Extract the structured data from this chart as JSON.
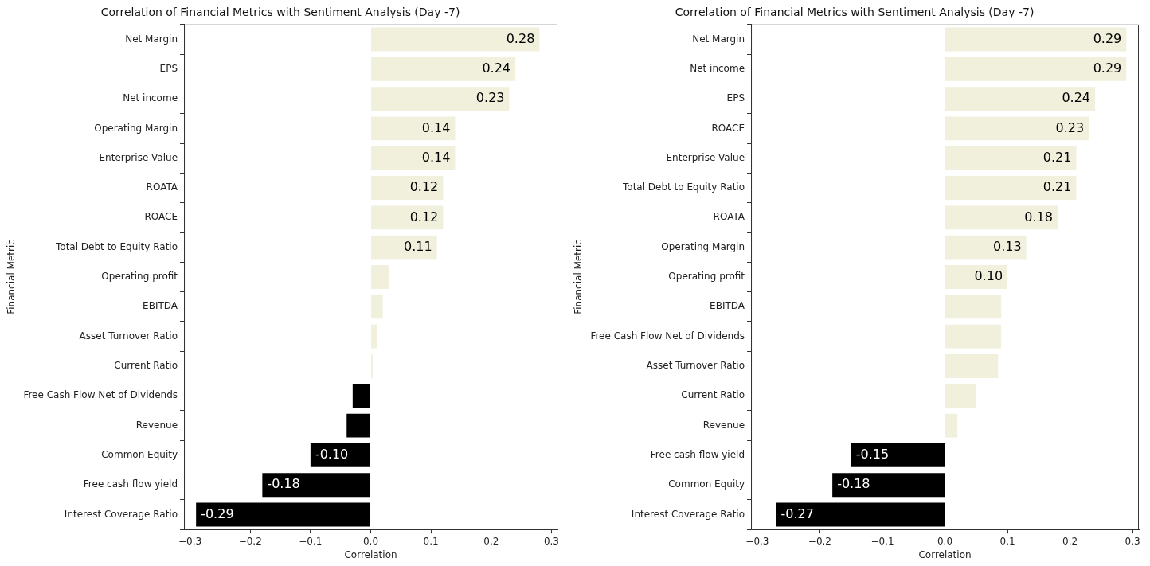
{
  "chart_data": [
    {
      "type": "bar",
      "orientation": "horizontal",
      "title": "Correlation of Financial Metrics with Sentiment Analysis (Day -7)",
      "xlabel": "Correlation",
      "ylabel": "Financial Metric",
      "categories": [
        "Net Margin",
        "EPS",
        "Net income",
        "Operating Margin",
        "Enterprise Value",
        "ROATA",
        "ROACE",
        "Total Debt to Equity Ratio",
        "Operating profit",
        "EBITDA",
        "Asset Turnover Ratio",
        "Current Ratio",
        "Free Cash Flow Net of Dividends",
        "Revenue",
        "Common Equity",
        "Free cash flow yield",
        "Interest Coverage Ratio"
      ],
      "values": [
        0.28,
        0.24,
        0.23,
        0.14,
        0.14,
        0.12,
        0.12,
        0.11,
        0.03,
        0.02,
        0.01,
        0.003,
        -0.03,
        -0.04,
        -0.1,
        -0.18,
        -0.29
      ],
      "colors": [
        "#f1f0dd",
        "#f1f0dd",
        "#f1f0dd",
        "#f1f0dd",
        "#f1f0dd",
        "#f1f0dd",
        "#f1f0dd",
        "#f1f0dd",
        "#f1f0dd",
        "#f1f0dd",
        "#f1f0dd",
        "#f1f0dd",
        "#000000",
        "#000000",
        "#000000",
        "#000000",
        "#000000"
      ],
      "value_labels": [
        "0.28",
        "0.24",
        "0.23",
        "0.14",
        "0.14",
        "0.12",
        "0.12",
        "0.11",
        null,
        null,
        null,
        null,
        null,
        null,
        "-0.10",
        "-0.18",
        "-0.29"
      ],
      "xlim": [
        -0.31,
        0.31
      ],
      "xticks": [
        {
          "value": -0.3,
          "label": "−0.3"
        },
        {
          "value": -0.2,
          "label": "−0.2"
        },
        {
          "value": -0.1,
          "label": "−0.1"
        },
        {
          "value": 0,
          "label": "0.0"
        },
        0.1,
        0.2,
        0.3
      ]
    },
    {
      "type": "bar",
      "orientation": "horizontal",
      "title": "Correlation of Financial Metrics with Sentiment Analysis (Day -7)",
      "xlabel": "Correlation",
      "ylabel": "Financial Metric",
      "categories": [
        "Net Margin",
        "Net income",
        "EPS",
        "ROACE",
        "Enterprise Value",
        "Total Debt to Equity Ratio",
        "ROATA",
        "Operating Margin",
        "Operating profit",
        "EBITDA",
        "Free Cash Flow Net of Dividends",
        "Asset Turnover Ratio",
        "Current Ratio",
        "Revenue",
        "Free cash flow yield",
        "Common Equity",
        "Interest Coverage Ratio"
      ],
      "values": [
        0.29,
        0.29,
        0.24,
        0.23,
        0.21,
        0.21,
        0.18,
        0.13,
        0.1,
        0.09,
        0.09,
        0.085,
        0.05,
        0.02,
        -0.15,
        -0.18,
        -0.27
      ],
      "colors": [
        "#f1f0dd",
        "#f1f0dd",
        "#f1f0dd",
        "#f1f0dd",
        "#f1f0dd",
        "#f1f0dd",
        "#f1f0dd",
        "#f1f0dd",
        "#f1f0dd",
        "#f1f0dd",
        "#f1f0dd",
        "#f1f0dd",
        "#f1f0dd",
        "#f1f0dd",
        "#000000",
        "#000000",
        "#000000"
      ],
      "value_labels": [
        "0.29",
        "0.29",
        "0.24",
        "0.23",
        "0.21",
        "0.21",
        "0.18",
        "0.13",
        "0.10",
        null,
        null,
        null,
        null,
        null,
        "-0.15",
        "-0.18",
        "-0.27"
      ],
      "xlim": [
        -0.31,
        0.31
      ],
      "xticks": [
        {
          "value": -0.3,
          "label": "−0.3"
        },
        {
          "value": -0.2,
          "label": "−0.2"
        },
        {
          "value": -0.1,
          "label": "−0.1"
        },
        {
          "value": 0,
          "label": "0.0"
        },
        0.1,
        0.2,
        0.3
      ]
    }
  ]
}
